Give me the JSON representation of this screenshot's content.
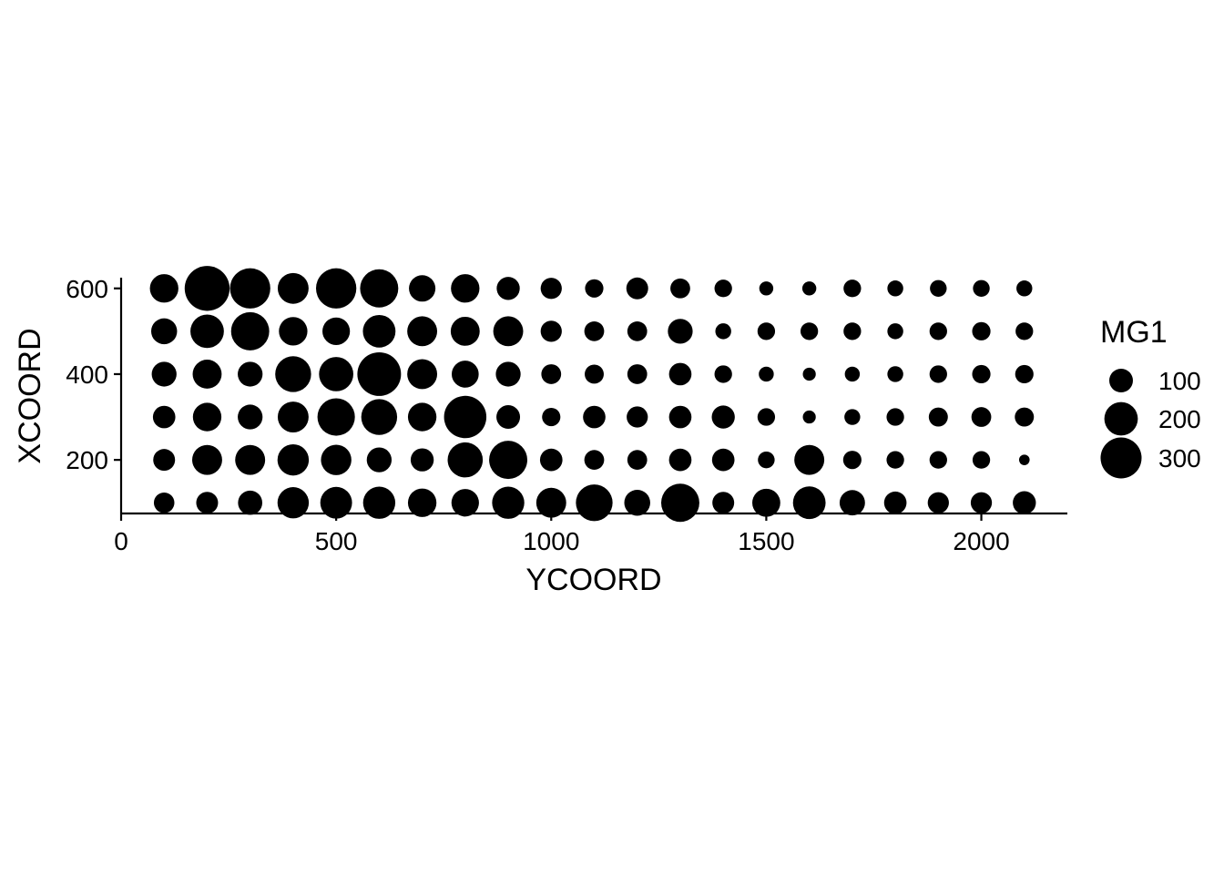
{
  "chart_data": {
    "type": "scatter",
    "xlabel": "YCOORD",
    "ylabel": "XCOORD",
    "xlim": [
      0,
      2200
    ],
    "ylim": [
      75,
      625
    ],
    "x_ticks": [
      0,
      500,
      1000,
      1500,
      2000
    ],
    "x_tick_labels": [
      "0",
      "500",
      "1000",
      "1500",
      "2000"
    ],
    "y_ticks": [
      200,
      400,
      600
    ],
    "y_tick_labels": [
      "200",
      "400",
      "600"
    ],
    "size_variable": "MG1",
    "grid": false,
    "point_color": "#000000",
    "legend": {
      "title": "MG1",
      "placement": "right",
      "values": [
        100,
        200,
        300
      ],
      "labels": [
        "100",
        "200",
        "300"
      ]
    },
    "x": [
      100,
      200,
      300,
      400,
      500,
      600,
      700,
      800,
      900,
      1000,
      1100,
      1200,
      1300,
      1400,
      1500,
      1600,
      1700,
      1800,
      1900,
      2000,
      2100
    ],
    "rows": [
      {
        "y": 600,
        "mg1": [
          145,
          360,
          290,
          170,
          290,
          260,
          125,
          145,
          95,
          80,
          60,
          85,
          70,
          55,
          35,
          35,
          55,
          45,
          50,
          50,
          45
        ]
      },
      {
        "y": 500,
        "mg1": [
          120,
          200,
          260,
          145,
          135,
          190,
          160,
          150,
          160,
          80,
          70,
          70,
          110,
          45,
          55,
          55,
          55,
          45,
          55,
          60,
          55
        ]
      },
      {
        "y": 400,
        "mg1": [
          110,
          150,
          110,
          230,
          210,
          340,
          160,
          130,
          110,
          70,
          65,
          70,
          90,
          55,
          40,
          30,
          40,
          45,
          55,
          60,
          60
        ]
      },
      {
        "y": 300,
        "mg1": [
          90,
          145,
          110,
          170,
          250,
          230,
          145,
          320,
          100,
          60,
          90,
          80,
          90,
          95,
          55,
          30,
          45,
          55,
          65,
          70,
          65
        ]
      },
      {
        "y": 200,
        "mg1": [
          85,
          160,
          160,
          175,
          165,
          110,
          95,
          220,
          260,
          90,
          70,
          70,
          90,
          90,
          50,
          160,
          60,
          55,
          55,
          55,
          20
        ]
      },
      {
        "y": 100,
        "mg1": [
          75,
          85,
          105,
          175,
          180,
          185,
          145,
          135,
          185,
          160,
          240,
          120,
          260,
          85,
          140,
          190,
          115,
          90,
          80,
          80,
          95
        ]
      }
    ]
  }
}
